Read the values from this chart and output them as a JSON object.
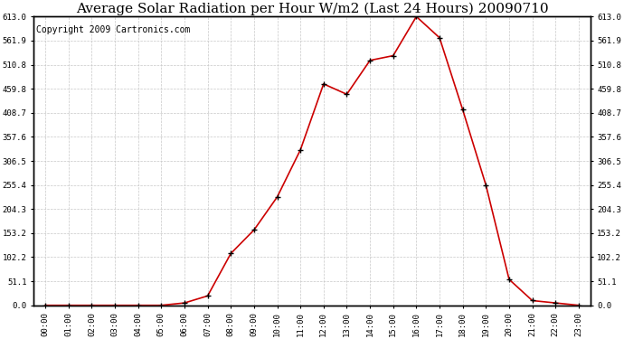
{
  "title": "Average Solar Radiation per Hour W/m2 (Last 24 Hours) 20090710",
  "copyright": "Copyright 2009 Cartronics.com",
  "hours": [
    "00:00",
    "01:00",
    "02:00",
    "03:00",
    "04:00",
    "05:00",
    "06:00",
    "07:00",
    "08:00",
    "09:00",
    "10:00",
    "11:00",
    "12:00",
    "13:00",
    "14:00",
    "15:00",
    "16:00",
    "17:00",
    "18:00",
    "19:00",
    "20:00",
    "21:00",
    "22:00",
    "23:00"
  ],
  "values": [
    0,
    0,
    0,
    0,
    0,
    0,
    5,
    20,
    110,
    160,
    230,
    330,
    470,
    448,
    520,
    530,
    613,
    568,
    415,
    255,
    55,
    10,
    5,
    0
  ],
  "line_color": "#cc0000",
  "marker_color": "#000000",
  "background_color": "#ffffff",
  "grid_color": "#c8c8c8",
  "title_fontsize": 11,
  "copyright_fontsize": 7,
  "ylim": [
    0,
    613
  ],
  "yticks": [
    0.0,
    51.1,
    102.2,
    153.2,
    204.3,
    255.4,
    306.5,
    357.6,
    408.7,
    459.8,
    510.8,
    561.9,
    613.0
  ]
}
